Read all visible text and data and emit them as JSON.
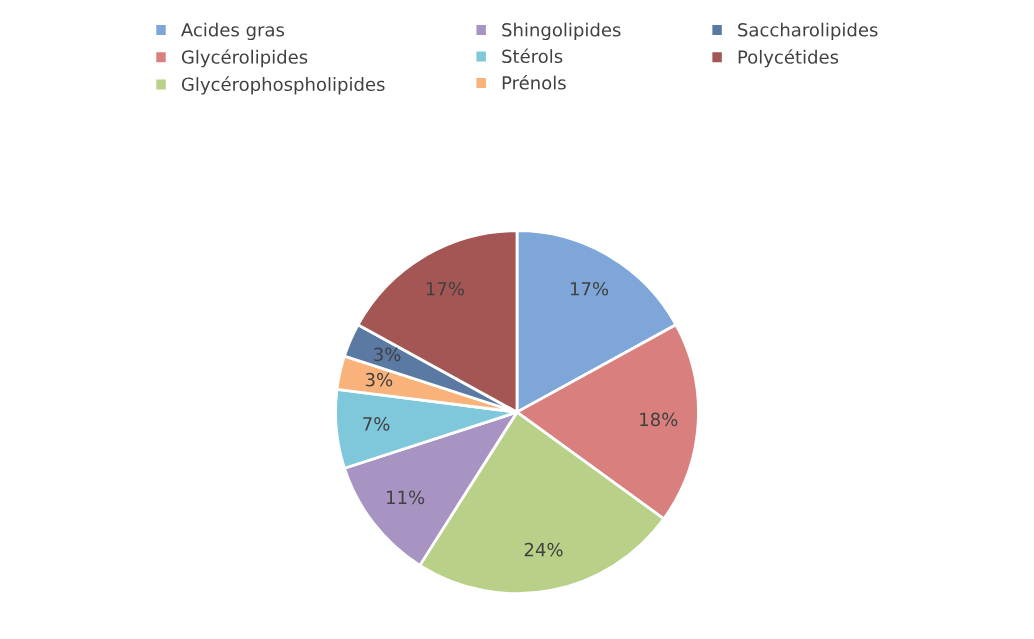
{
  "chart_data": {
    "type": "pie",
    "categories": [
      "Acides gras",
      "Glycérolipides",
      "Glycérophospholipides",
      "Shingolipides",
      "Stérols",
      "Prénols",
      "Saccharolipides",
      "Polycétides"
    ],
    "values": [
      17,
      18,
      24,
      11,
      7,
      3,
      3,
      17
    ],
    "value_labels": [
      "17%",
      "18%",
      "24%",
      "11%",
      "7%",
      "3%",
      "3%",
      "17%"
    ],
    "colors": [
      "#7fa6d9",
      "#d9807e",
      "#b8d087",
      "#a894c2",
      "#7fc8dc",
      "#f9b27a",
      "#5a7aa3",
      "#a35654"
    ],
    "legend": "top"
  }
}
